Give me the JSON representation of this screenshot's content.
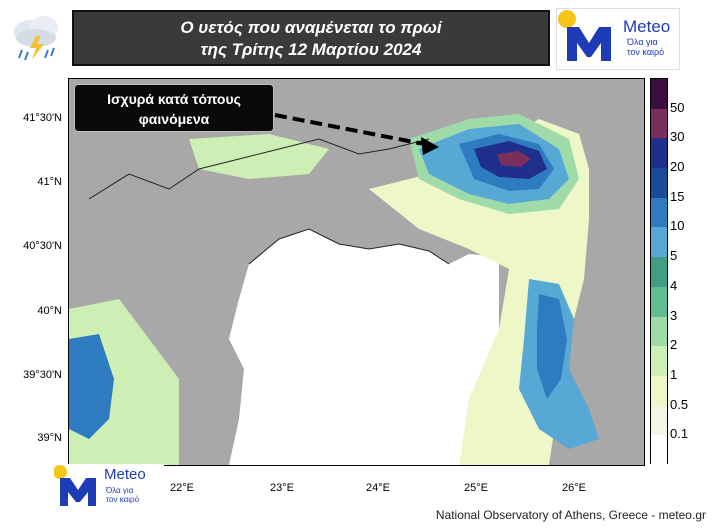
{
  "title": {
    "line1": "Ο υετός που αναμένεται το πρωί",
    "line2": "της Τρίτης 12 Μαρτίου 2024"
  },
  "logo": {
    "name": "Meteo",
    "tagline_line1": "Όλα για",
    "tagline_line2": "τον καιρό"
  },
  "callout": {
    "line1": "Ισχυρά κατά τόπους",
    "line2": "φαινόμενα"
  },
  "map": {
    "latitude_labels": [
      "41°30'N",
      "41°N",
      "40°30'N",
      "40°N",
      "39°30'N",
      "39°N"
    ],
    "longitude_labels": [
      "22°E",
      "23°E",
      "24°E",
      "25°E",
      "26°E"
    ]
  },
  "legend": {
    "unit_hint": "precipitation",
    "levels": [
      "50",
      "30",
      "20",
      "15",
      "10",
      "5",
      "4",
      "3",
      "2",
      "1",
      "0.5",
      "0.1"
    ],
    "colors": [
      "#3b0e3b",
      "#7a2e5c",
      "#1e2f8c",
      "#1a4a9a",
      "#2e7cbf",
      "#58a8d6",
      "#3f9e84",
      "#62bd95",
      "#9edba8",
      "#cdefb5",
      "#eef7c8",
      "#f5f5e6",
      "#ffffff"
    ]
  },
  "footer": {
    "credit": "National Observatory of Athens, Greece - meteo.gr"
  }
}
